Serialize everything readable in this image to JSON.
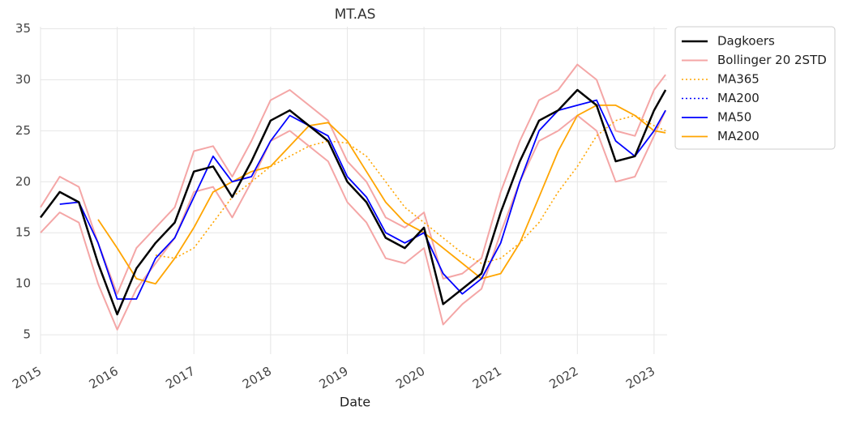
{
  "chart_data": {
    "type": "line",
    "title": "MT.AS",
    "x_label": "Date",
    "x": [
      2015,
      2015.25,
      2015.5,
      2015.75,
      2016,
      2016.25,
      2016.5,
      2016.75,
      2017,
      2017.25,
      2017.5,
      2017.75,
      2018,
      2018.25,
      2018.5,
      2018.75,
      2019,
      2019.25,
      2019.5,
      2019.75,
      2020,
      2020.25,
      2020.5,
      2020.75,
      2021,
      2021.25,
      2021.5,
      2021.75,
      2022,
      2022.25,
      2022.5,
      2022.75,
      2023,
      2023.15
    ],
    "series": [
      {
        "name": "Dagkoers",
        "color": "#000000",
        "style": "solid",
        "width": 2.5,
        "values": [
          16.5,
          19,
          18,
          12,
          7,
          11.5,
          14,
          16,
          21,
          21.5,
          18.5,
          22,
          26,
          27,
          25.5,
          24,
          20,
          18,
          14.5,
          13.5,
          15.5,
          8,
          9.5,
          11,
          17,
          22,
          26,
          27,
          29,
          27.5,
          22,
          22.5,
          27,
          29
        ]
      },
      {
        "name": "Bollinger 20 2STD",
        "color": "#f4a6a6",
        "style": "solid",
        "width": 2,
        "values": [
          17.5,
          20.5,
          19.5,
          14,
          9,
          13.5,
          15.5,
          17.5,
          23,
          23.5,
          20.5,
          24,
          28,
          29,
          27.5,
          26,
          22,
          20,
          16.5,
          15.5,
          17,
          10.5,
          11,
          12.5,
          19,
          24,
          28,
          29,
          31.5,
          30,
          25,
          24.5,
          29,
          30.5
        ],
        "lower": [
          15,
          17,
          16,
          10,
          5.5,
          9.5,
          12,
          14.5,
          19,
          19.5,
          16.5,
          20,
          24,
          25,
          23.5,
          22,
          18,
          16,
          12.5,
          12,
          13.5,
          6,
          8,
          9.5,
          15,
          20,
          24,
          25,
          26.5,
          25,
          20,
          20.5,
          24.5,
          27
        ]
      },
      {
        "name": "MA365",
        "color": "#ffa500",
        "style": "dotted",
        "width": 1.6,
        "values": [
          null,
          null,
          null,
          null,
          null,
          null,
          12.8,
          12.5,
          13.5,
          16,
          18.5,
          20,
          21.5,
          22.5,
          23.5,
          24,
          23.8,
          22.5,
          20,
          17.5,
          16,
          14.5,
          13,
          12,
          12.5,
          14,
          16,
          19,
          21.5,
          24.5,
          26,
          26.5,
          25.5,
          25
        ]
      },
      {
        "name": "MA200",
        "color": "#0000ff",
        "style": "dotted",
        "width": 1.6,
        "values": [
          null,
          null,
          null,
          null,
          null,
          null,
          null,
          null,
          null,
          null,
          null,
          null,
          null,
          null,
          null,
          null,
          null,
          null,
          null,
          null,
          null,
          null,
          null,
          null,
          null,
          null,
          null,
          null,
          null,
          null,
          null,
          null,
          null,
          null
        ]
      },
      {
        "name": "MA50",
        "color": "#0000ff",
        "style": "solid",
        "width": 1.8,
        "values": [
          null,
          17.8,
          18,
          14,
          8.5,
          8.5,
          12.5,
          14.5,
          18.5,
          22.5,
          20,
          20.5,
          24,
          26.5,
          25.5,
          24.5,
          20.5,
          18.5,
          15,
          14,
          15,
          11,
          9,
          10.5,
          14,
          20,
          25,
          27,
          27.5,
          28,
          24,
          22.5,
          25,
          27
        ]
      },
      {
        "name": "MA200",
        "color": "#ffa500",
        "style": "solid",
        "width": 1.8,
        "values": [
          null,
          null,
          null,
          16.3,
          13.5,
          10.5,
          10,
          12.5,
          15.5,
          19,
          20,
          21,
          21.5,
          23.5,
          25.5,
          25.8,
          24,
          21,
          18,
          16,
          15,
          13.5,
          12,
          10.5,
          11,
          14,
          18.5,
          23,
          26.5,
          27.5,
          27.5,
          26.5,
          25,
          24.8
        ]
      }
    ],
    "xlim": [
      2015,
      2023.17
    ],
    "xticks": [
      2015,
      2016,
      2017,
      2018,
      2019,
      2020,
      2021,
      2022,
      2023
    ],
    "ylim": [
      3.1,
      35.2
    ],
    "yticks": [
      5,
      10,
      15,
      20,
      25,
      30,
      35
    ],
    "grid": true,
    "legend": "outside upper right"
  }
}
